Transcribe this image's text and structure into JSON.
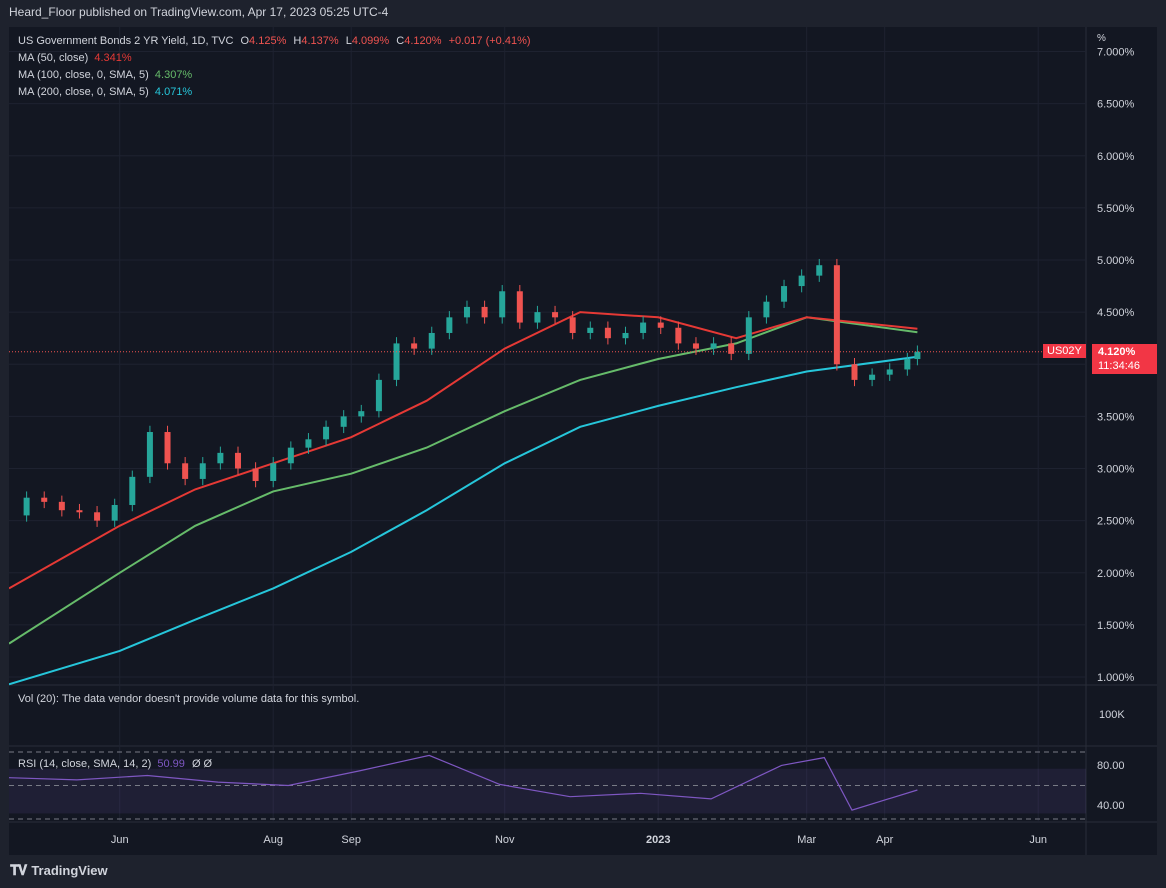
{
  "header": {
    "published": "Heard_Floor published on TradingView.com, Apr 17, 2023 05:25 UTC-4"
  },
  "legend": {
    "symbol": "US Government Bonds 2 YR Yield, 1D, TVC",
    "o_label": "O",
    "o": "4.125%",
    "h_label": "H",
    "h": "4.137%",
    "l_label": "L",
    "l": "4.099%",
    "c_label": "C",
    "c": "4.120%",
    "change": "+0.017 (+0.41%)",
    "ma50_label": "MA (50, close)",
    "ma50_value": "4.341%",
    "ma100_label": "MA (100, close, 0, SMA, 5)",
    "ma100_value": "4.307%",
    "ma200_label": "MA (200, close, 0, SMA, 5)",
    "ma200_value": "4.071%"
  },
  "volume": {
    "text": "Vol (20): The data vendor doesn't provide volume data for this symbol.",
    "axis_label": "100K"
  },
  "rsi": {
    "label": "RSI (14, close, SMA, 14, 2)",
    "value": "50.99",
    "extra": "Ø  Ø"
  },
  "price_tag": {
    "symbol": "US02Y",
    "price": "4.120%",
    "countdown": "11:34:46"
  },
  "footer": {
    "brand": "TradingView"
  },
  "colors": {
    "up": "#26a69a",
    "down": "#ef5350",
    "ma50": "#e53935",
    "ma100": "#66bb6a",
    "ma200": "#26c6da",
    "rsi": "#7e57c2",
    "background": "#131722"
  },
  "chart_data": {
    "type": "candlestick",
    "title": "US Government Bonds 2 YR Yield, 1D, TVC",
    "yunit": "%",
    "price_axis_ticks": [
      "7.000%",
      "6.500%",
      "6.000%",
      "5.500%",
      "5.000%",
      "4.500%",
      "4.000%",
      "3.500%",
      "3.000%",
      "2.500%",
      "2.000%",
      "1.500%",
      "1.000%"
    ],
    "price_axis_values": [
      7.0,
      6.5,
      6.0,
      5.5,
      5.0,
      4.5,
      4.0,
      3.5,
      3.0,
      2.5,
      2.0,
      1.5,
      1.0
    ],
    "x_ticks": [
      {
        "label": "Jun",
        "date": "2022-06-01"
      },
      {
        "label": "Aug",
        "date": "2022-08-01"
      },
      {
        "label": "Sep",
        "date": "2022-09-01"
      },
      {
        "label": "Nov",
        "date": "2022-11-01"
      },
      {
        "label": "2023",
        "date": "2023-01-01"
      },
      {
        "label": "Mar",
        "date": "2023-03-01"
      },
      {
        "label": "Apr",
        "date": "2023-04-01"
      },
      {
        "label": "Jun",
        "date": "2023-06-01"
      }
    ],
    "close_series": {
      "dates": [
        "2022-04-18",
        "2022-04-25",
        "2022-05-02",
        "2022-05-09",
        "2022-05-16",
        "2022-05-23",
        "2022-05-30",
        "2022-06-06",
        "2022-06-13",
        "2022-06-20",
        "2022-06-27",
        "2022-07-04",
        "2022-07-11",
        "2022-07-18",
        "2022-07-25",
        "2022-08-01",
        "2022-08-08",
        "2022-08-15",
        "2022-08-22",
        "2022-08-29",
        "2022-09-05",
        "2022-09-12",
        "2022-09-19",
        "2022-09-26",
        "2022-10-03",
        "2022-10-10",
        "2022-10-17",
        "2022-10-24",
        "2022-10-31",
        "2022-11-07",
        "2022-11-14",
        "2022-11-21",
        "2022-11-28",
        "2022-12-05",
        "2022-12-12",
        "2022-12-19",
        "2022-12-26",
        "2023-01-02",
        "2023-01-09",
        "2023-01-16",
        "2023-01-23",
        "2023-01-30",
        "2023-02-06",
        "2023-02-13",
        "2023-02-20",
        "2023-02-27",
        "2023-03-06",
        "2023-03-13",
        "2023-03-20",
        "2023-03-27",
        "2023-04-03",
        "2023-04-10",
        "2023-04-14"
      ],
      "values": [
        2.55,
        2.72,
        2.68,
        2.6,
        2.58,
        2.5,
        2.65,
        2.92,
        3.35,
        3.05,
        2.9,
        3.05,
        3.15,
        3.0,
        2.88,
        3.05,
        3.2,
        3.28,
        3.4,
        3.5,
        3.55,
        3.85,
        4.2,
        4.15,
        4.3,
        4.45,
        4.55,
        4.45,
        4.7,
        4.4,
        4.5,
        4.45,
        4.3,
        4.35,
        4.25,
        4.3,
        4.4,
        4.35,
        4.2,
        4.15,
        4.2,
        4.1,
        4.45,
        4.6,
        4.75,
        4.85,
        4.95,
        4.0,
        3.85,
        3.9,
        3.95,
        4.05,
        4.12
      ]
    },
    "ma50_series": {
      "dates": [
        "2022-04-18",
        "2022-06-01",
        "2022-07-01",
        "2022-08-01",
        "2022-09-01",
        "2022-10-01",
        "2022-11-01",
        "2022-12-01",
        "2023-01-01",
        "2023-02-01",
        "2023-03-01",
        "2023-04-14"
      ],
      "values": [
        1.85,
        2.45,
        2.8,
        3.05,
        3.3,
        3.65,
        4.15,
        4.5,
        4.45,
        4.25,
        4.45,
        4.341
      ]
    },
    "ma100_series": {
      "dates": [
        "2022-04-18",
        "2022-06-01",
        "2022-07-01",
        "2022-08-01",
        "2022-09-01",
        "2022-10-01",
        "2022-11-01",
        "2022-12-01",
        "2023-01-01",
        "2023-02-01",
        "2023-03-01",
        "2023-04-14"
      ],
      "values": [
        1.32,
        2.0,
        2.45,
        2.78,
        2.95,
        3.2,
        3.55,
        3.85,
        4.05,
        4.2,
        4.45,
        4.307
      ]
    },
    "ma200_series": {
      "dates": [
        "2022-04-18",
        "2022-06-01",
        "2022-07-01",
        "2022-08-01",
        "2022-09-01",
        "2022-10-01",
        "2022-11-01",
        "2022-12-01",
        "2023-01-01",
        "2023-02-01",
        "2023-03-01",
        "2023-04-14"
      ],
      "values": [
        0.93,
        1.25,
        1.55,
        1.85,
        2.2,
        2.6,
        3.05,
        3.4,
        3.6,
        3.78,
        3.93,
        4.071
      ]
    },
    "current_price": 4.12,
    "rsi": {
      "ticks": [
        "80.00",
        "40.00"
      ],
      "levels": [
        70,
        30
      ],
      "dates": [
        "2022-04-18",
        "2022-05-15",
        "2022-06-12",
        "2022-07-10",
        "2022-08-07",
        "2022-09-04",
        "2022-10-02",
        "2022-10-30",
        "2022-11-27",
        "2022-12-25",
        "2023-01-22",
        "2023-02-19",
        "2023-03-08",
        "2023-03-19",
        "2023-04-14"
      ],
      "values": [
        62,
        60,
        64,
        58,
        55,
        68,
        82,
        56,
        45,
        48,
        43,
        73,
        80,
        33,
        50.99
      ]
    },
    "volume_axis_tick": "100K"
  }
}
